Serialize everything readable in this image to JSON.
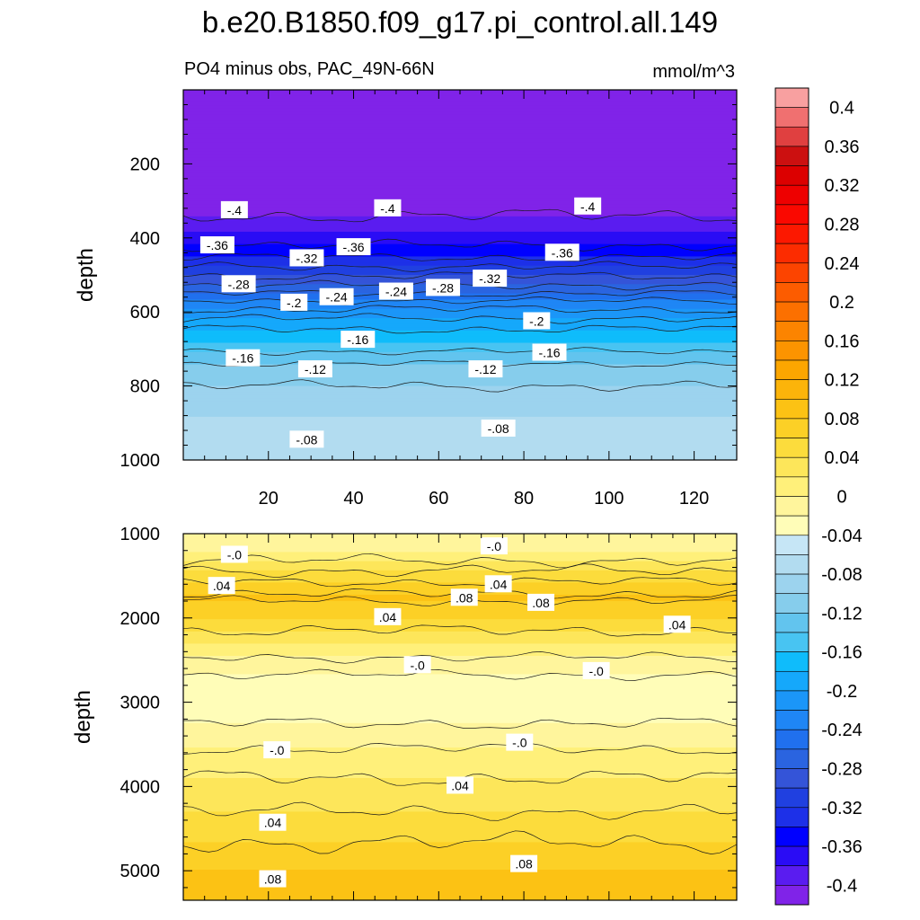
{
  "chart_data": {
    "type": "heatmap",
    "title": "b.e20.B1850.f09_g17.pi_control.all.149",
    "subtitle_left": "PO4 minus obs, PAC_49N-66N",
    "units": "mmol/m^3",
    "colorbar": {
      "levels": [
        -0.42,
        -0.4,
        -0.38,
        -0.36,
        -0.34,
        -0.32,
        -0.3,
        -0.28,
        -0.26,
        -0.24,
        -0.22,
        -0.2,
        -0.18,
        -0.16,
        -0.14,
        -0.12,
        -0.1,
        -0.08,
        -0.06,
        -0.04,
        -0.02,
        0,
        0.02,
        0.04,
        0.06,
        0.08,
        0.1,
        0.12,
        0.14,
        0.16,
        0.18,
        0.2,
        0.22,
        0.24,
        0.26,
        0.28,
        0.3,
        0.32,
        0.34,
        0.36,
        0.38,
        0.4,
        0.42
      ],
      "colors": [
        "#8023e8",
        "#5a1cf0",
        "#2a0cf5",
        "#0000ff",
        "#1d30e8",
        "#2040e0",
        "#3454d8",
        "#2a64e0",
        "#2070ee",
        "#1f86f5",
        "#1b96f8",
        "#15a8fb",
        "#0fbcfb",
        "#48c4f2",
        "#62c4ee",
        "#86cdec",
        "#9cd3ee",
        "#b2dcf0",
        "#c6e6f6",
        "#fffdb8",
        "#fff59c",
        "#fff07a",
        "#fde65a",
        "#fcdc3c",
        "#fcd026",
        "#fcc214",
        "#fcb40a",
        "#fca600",
        "#fc9400",
        "#fc8400",
        "#fc7000",
        "#fc5c00",
        "#fc4400",
        "#fc2c00",
        "#fc1800",
        "#fa0800",
        "#ee0000",
        "#dc0000",
        "#cc1010",
        "#e04040",
        "#f07070",
        "#f8a0a0"
      ],
      "tick_labels": [
        "0.4",
        "0.36",
        "0.32",
        "0.28",
        "0.24",
        "0.2",
        "0.16",
        "0.12",
        "0.08",
        "0.04",
        "0",
        "-0.04",
        "-0.08",
        "-0.12",
        "-0.16",
        "-0.2",
        "-0.24",
        "-0.28",
        "-0.32",
        "-0.36",
        "-0.4"
      ],
      "tick_values": [
        0.4,
        0.36,
        0.32,
        0.28,
        0.24,
        0.2,
        0.16,
        0.12,
        0.08,
        0.04,
        0,
        -0.04,
        -0.08,
        -0.12,
        -0.16,
        -0.2,
        -0.24,
        -0.28,
        -0.32,
        -0.36,
        -0.4
      ]
    },
    "panels": [
      {
        "name": "upper",
        "ylabel": "depth",
        "xlim": [
          0,
          130
        ],
        "ylim": [
          1000,
          0
        ],
        "xticks": [
          20,
          40,
          60,
          80,
          100,
          120
        ],
        "xtick_labels": [
          "20",
          "40",
          "60",
          "80",
          "100",
          "120"
        ],
        "yticks": [
          200,
          400,
          600,
          800,
          1000
        ],
        "ytick_labels": [
          "200",
          "400",
          "600",
          "800",
          "1000"
        ],
        "profile_depths": [
          0,
          300,
          380,
          440,
          490,
          540,
          580,
          630,
          680,
          720,
          760,
          820,
          880,
          930,
          1000
        ],
        "profile_values": [
          -0.42,
          -0.42,
          -0.38,
          -0.35,
          -0.31,
          -0.27,
          -0.23,
          -0.19,
          -0.16,
          -0.13,
          -0.11,
          -0.095,
          -0.08,
          -0.065,
          -0.06
        ],
        "contour_labels": [
          {
            "text": "-.4",
            "x": 12,
            "d": 325
          },
          {
            "text": "-.4",
            "x": 48,
            "d": 320
          },
          {
            "text": "-.4",
            "x": 95,
            "d": 315
          },
          {
            "text": "-.36",
            "x": 8,
            "d": 420
          },
          {
            "text": "-.32",
            "x": 29,
            "d": 455
          },
          {
            "text": "-.36",
            "x": 40,
            "d": 425
          },
          {
            "text": "-.36",
            "x": 89,
            "d": 440
          },
          {
            "text": "-.28",
            "x": 13,
            "d": 525
          },
          {
            "text": "-.2",
            "x": 26,
            "d": 575
          },
          {
            "text": "-.24",
            "x": 36,
            "d": 560
          },
          {
            "text": "-.24",
            "x": 50,
            "d": 545
          },
          {
            "text": "-.28",
            "x": 61,
            "d": 535
          },
          {
            "text": "-.32",
            "x": 72,
            "d": 510
          },
          {
            "text": "-.2",
            "x": 83,
            "d": 625
          },
          {
            "text": "-.16",
            "x": 14,
            "d": 725
          },
          {
            "text": "-.16",
            "x": 41,
            "d": 675
          },
          {
            "text": "-.16",
            "x": 86,
            "d": 710
          },
          {
            "text": "-.12",
            "x": 31,
            "d": 755
          },
          {
            "text": "-.12",
            "x": 71,
            "d": 755
          },
          {
            "text": "-.08",
            "x": 29,
            "d": 945
          },
          {
            "text": "-.08",
            "x": 74,
            "d": 915
          }
        ]
      },
      {
        "name": "lower",
        "ylabel": "depth",
        "xlim": [
          0,
          130
        ],
        "ylim": [
          5350,
          1000
        ],
        "xticks": [
          20,
          40,
          60,
          80,
          100,
          120
        ],
        "yticks": [
          1000,
          2000,
          3000,
          4000,
          5000
        ],
        "ytick_labels": [
          "1000",
          "2000",
          "3000",
          "4000",
          "5000"
        ],
        "profile_depths": [
          1000,
          1200,
          1500,
          1750,
          2000,
          2300,
          2550,
          2800,
          3100,
          3400,
          3700,
          4100,
          4500,
          5000,
          5350
        ],
        "profile_values": [
          -0.02,
          0.0,
          0.05,
          0.085,
          0.06,
          0.02,
          -0.01,
          -0.03,
          -0.03,
          -0.01,
          0.01,
          0.03,
          0.05,
          0.08,
          0.1
        ],
        "contour_labels": [
          {
            "text": "-.0",
            "x": 12,
            "d": 1250
          },
          {
            "text": "-.0",
            "x": 73,
            "d": 1150
          },
          {
            "text": ".04",
            "x": 9,
            "d": 1620
          },
          {
            "text": ".04",
            "x": 74,
            "d": 1600
          },
          {
            "text": ".08",
            "x": 66,
            "d": 1760
          },
          {
            "text": ".08",
            "x": 84,
            "d": 1820
          },
          {
            "text": ".04",
            "x": 48,
            "d": 1990
          },
          {
            "text": ".04",
            "x": 116,
            "d": 2080
          },
          {
            "text": "-.0",
            "x": 55,
            "d": 2560
          },
          {
            "text": "-.0",
            "x": 97,
            "d": 2630
          },
          {
            "text": "-.0",
            "x": 22,
            "d": 3570
          },
          {
            "text": "-.0",
            "x": 79,
            "d": 3480
          },
          {
            "text": ".04",
            "x": 65,
            "d": 3990
          },
          {
            "text": ".04",
            "x": 21,
            "d": 4430
          },
          {
            "text": ".08",
            "x": 21,
            "d": 5100
          },
          {
            "text": ".08",
            "x": 80,
            "d": 4920
          }
        ]
      }
    ]
  }
}
